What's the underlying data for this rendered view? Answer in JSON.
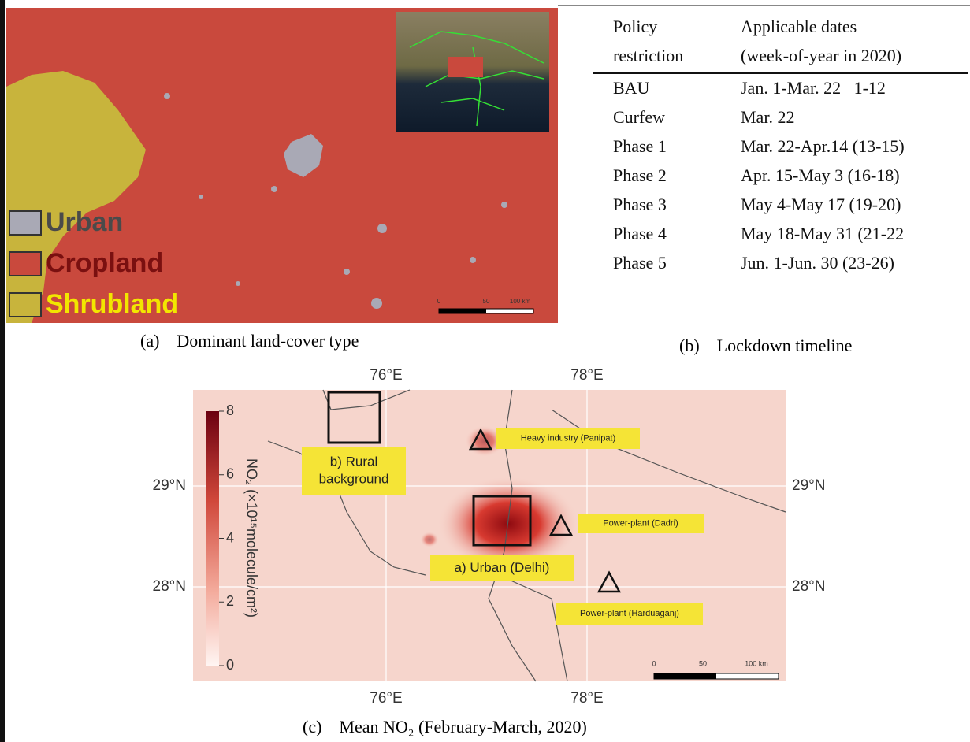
{
  "panel_a": {
    "caption_label": "(a)",
    "caption": "Dominant land-cover type",
    "legend": [
      {
        "label": "Urban",
        "color": "#a9a9b5",
        "text_color": "#4a4a4a"
      },
      {
        "label": "Cropland",
        "color": "#c9493d",
        "text_color": "#7a1010"
      },
      {
        "label": "Shrubland",
        "color": "#c8b43c",
        "text_color": "#f2e600"
      }
    ],
    "scale_bar": [
      "0",
      "50",
      "100 km"
    ]
  },
  "panel_b": {
    "caption_label": "(b)",
    "caption": "Lockdown timeline",
    "table": {
      "header": [
        [
          "Policy",
          "restriction"
        ],
        [
          "Applicable dates",
          "(week-of-year in 2020)"
        ]
      ],
      "rows": [
        [
          "BAU",
          "Jan. 1-Mar. 22   1-12"
        ],
        [
          "Curfew",
          "Mar. 22"
        ],
        [
          "Phase 1",
          "Mar. 22-Apr.14 (13-15)"
        ],
        [
          "Phase 2",
          "Apr. 15-May 3 (16-18)"
        ],
        [
          "Phase 3",
          "May 4-May 17 (19-20)"
        ],
        [
          "Phase 4",
          "May 18-May 31 (21-22"
        ],
        [
          "Phase 5",
          "Jun. 1-Jun. 30 (23-26)"
        ]
      ]
    }
  },
  "panel_c": {
    "caption_label": "(c)",
    "caption": "Mean NO₂ (February-March, 2020)",
    "lon_labels": [
      "76°E",
      "78°E"
    ],
    "lat_labels": [
      "29°N",
      "28°N"
    ],
    "colorbar_label": "NO₂ (×10¹⁵molecule/cm²)",
    "colorbar_ticks": [
      "8",
      "6",
      "4",
      "2",
      "0"
    ],
    "annotations": [
      [
        "Heavy industry (Panipat)"
      ],
      [
        "b) Rural",
        "background"
      ],
      [
        "Power-plant (Dadri)"
      ],
      [
        "a) Urban (Delhi)"
      ],
      [
        "Power-plant (Harduaganj)"
      ]
    ],
    "scale_bar": [
      "0",
      "50",
      "100 km"
    ]
  }
}
